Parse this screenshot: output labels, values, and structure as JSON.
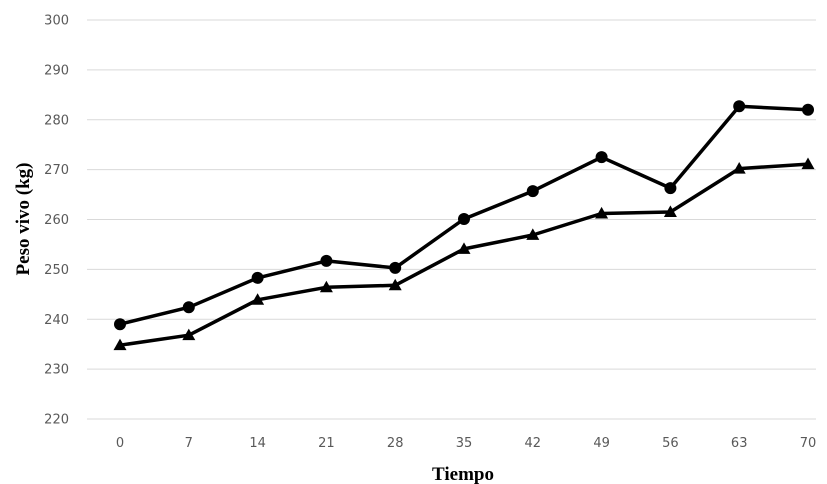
{
  "chart_data": {
    "type": "line",
    "title": "",
    "xlabel": "Tiempo",
    "ylabel": "Peso vivo (kg)",
    "x": [
      0,
      7,
      14,
      21,
      28,
      35,
      42,
      49,
      56,
      63,
      70
    ],
    "x_tick_labels": [
      "0",
      "7",
      "14",
      "21",
      "28",
      "35",
      "42",
      "49",
      "56",
      "63",
      "70"
    ],
    "ylim": [
      220,
      300
    ],
    "y_ticks": [
      220,
      230,
      240,
      250,
      260,
      270,
      280,
      290,
      300
    ],
    "y_tick_labels": [
      "220",
      "230",
      "240",
      "250",
      "260",
      "270",
      "280",
      "290",
      "300"
    ],
    "grid": true,
    "legend": "none",
    "series": [
      {
        "marker": "circle",
        "color": "#000000",
        "values": [
          239.0,
          242.4,
          248.3,
          251.7,
          250.3,
          260.1,
          265.7,
          272.5,
          266.3,
          282.7,
          282.0
        ]
      },
      {
        "marker": "triangle",
        "color": "#000000",
        "values": [
          234.8,
          236.8,
          243.9,
          246.4,
          246.8,
          254.1,
          256.9,
          261.2,
          261.5,
          270.2,
          271.1
        ]
      }
    ]
  }
}
